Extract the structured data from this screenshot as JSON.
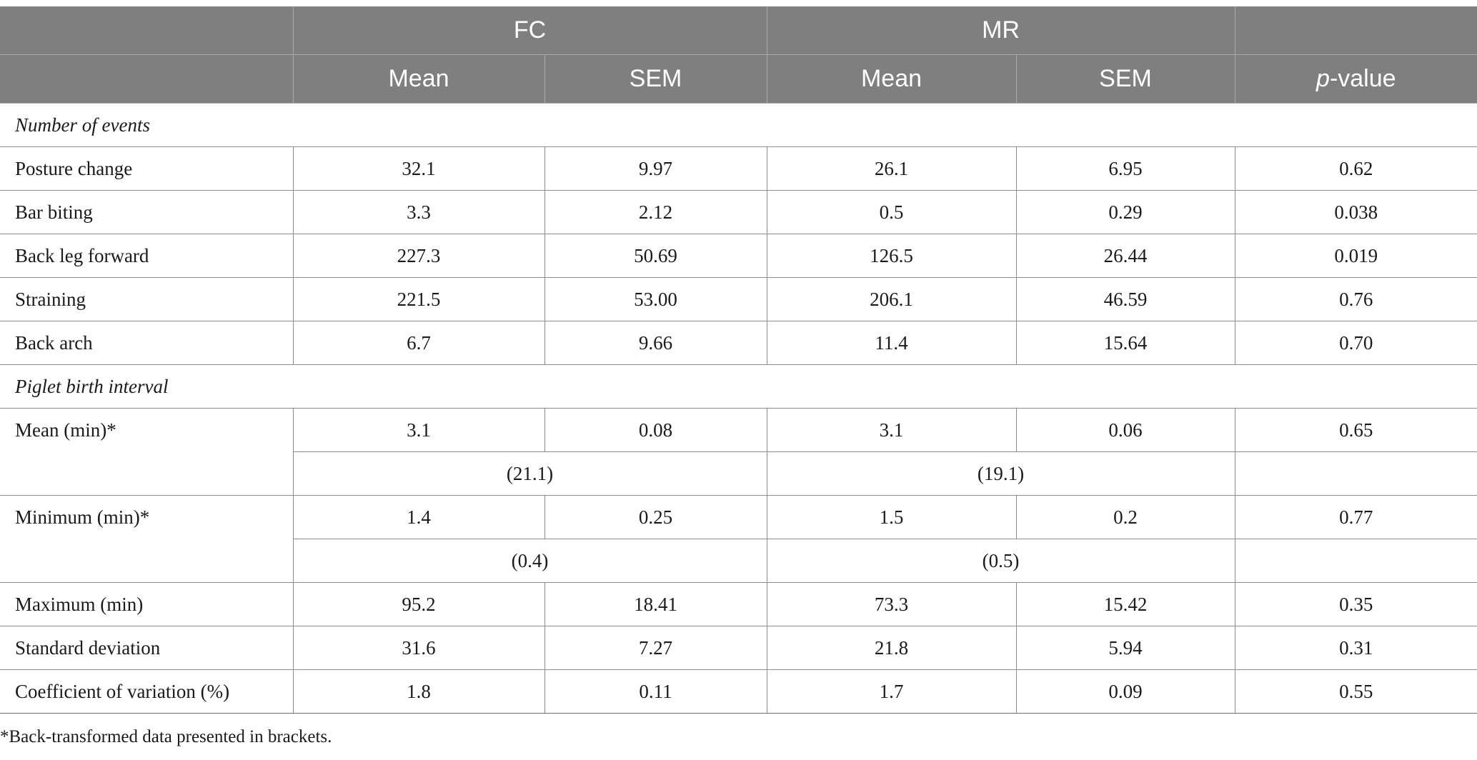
{
  "header": {
    "group_fc": "FC",
    "group_mr": "MR",
    "col_mean_fc": "Mean",
    "col_sem_fc": "SEM",
    "col_mean_mr": "Mean",
    "col_sem_mr": "SEM",
    "col_p_italic": "p",
    "col_p_rest": "-value"
  },
  "sections": {
    "events": "Number of events",
    "interval": "Piglet birth interval"
  },
  "rows": {
    "posture": {
      "label": "Posture change",
      "fc_mean": "32.1",
      "fc_sem": "9.97",
      "mr_mean": "26.1",
      "mr_sem": "6.95",
      "p": "0.62"
    },
    "bar": {
      "label": "Bar biting",
      "fc_mean": "3.3",
      "fc_sem": "2.12",
      "mr_mean": "0.5",
      "mr_sem": "0.29",
      "p": "0.038"
    },
    "backleg": {
      "label": "Back leg forward",
      "fc_mean": "227.3",
      "fc_sem": "50.69",
      "mr_mean": "126.5",
      "mr_sem": "26.44",
      "p": "0.019"
    },
    "straining": {
      "label": "Straining",
      "fc_mean": "221.5",
      "fc_sem": "53.00",
      "mr_mean": "206.1",
      "mr_sem": "46.59",
      "p": "0.76"
    },
    "arch": {
      "label": "Back arch",
      "fc_mean": "6.7",
      "fc_sem": "9.66",
      "mr_mean": "11.4",
      "mr_sem": "15.64",
      "p": "0.70"
    },
    "mean_min": {
      "label": "Mean (min)*",
      "fc_mean": "3.1",
      "fc_sem": "0.08",
      "mr_mean": "3.1",
      "mr_sem": "0.06",
      "p": "0.65",
      "fc_bt": "(21.1)",
      "mr_bt": "(19.1)"
    },
    "min_min": {
      "label": "Minimum (min)*",
      "fc_mean": "1.4",
      "fc_sem": "0.25",
      "mr_mean": "1.5",
      "mr_sem": "0.2",
      "p": "0.77",
      "fc_bt": "(0.4)",
      "mr_bt": "(0.5)"
    },
    "max_min": {
      "label": "Maximum (min)",
      "fc_mean": "95.2",
      "fc_sem": "18.41",
      "mr_mean": "73.3",
      "mr_sem": "15.42",
      "p": "0.35"
    },
    "sd": {
      "label": "Standard deviation",
      "fc_mean": "31.6",
      "fc_sem": "7.27",
      "mr_mean": "21.8",
      "mr_sem": "5.94",
      "p": "0.31"
    },
    "cv": {
      "label": "Coefficient of variation (%)",
      "fc_mean": "1.8",
      "fc_sem": "0.11",
      "mr_mean": "1.7",
      "mr_sem": "0.09",
      "p": "0.55"
    }
  },
  "footnote": "*Back-transformed data presented in brackets."
}
